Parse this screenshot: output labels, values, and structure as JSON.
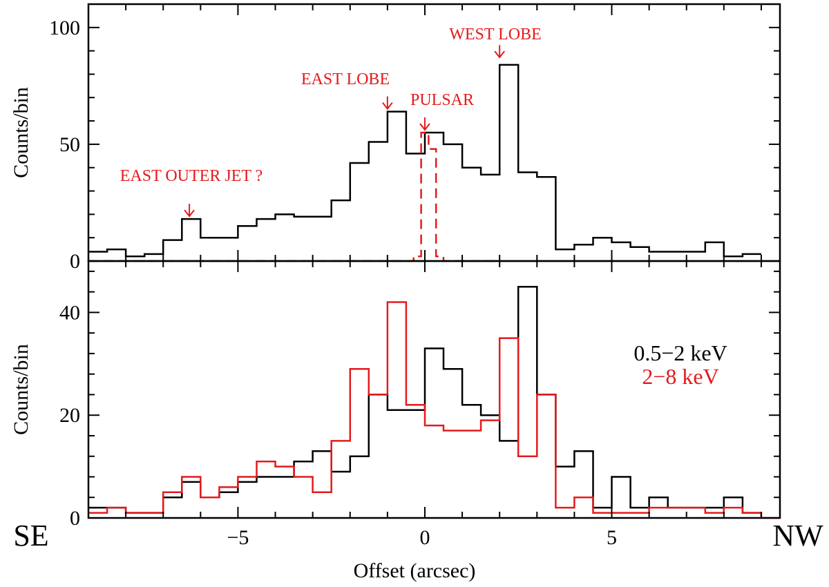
{
  "colors": {
    "axis": "#000000",
    "soft": "#000000",
    "hard": "#e31a1c",
    "annotation": "#e31a1c"
  },
  "chart_data": [
    {
      "type": "step",
      "panel": "top",
      "ylabel": "Counts/bin",
      "xlim": [
        -9,
        9.5
      ],
      "ylim": [
        0,
        110
      ],
      "yticks": [
        0,
        50,
        100
      ],
      "series": [
        {
          "name": "total counts",
          "style": "solid",
          "color": "#000000",
          "edges": [
            -9,
            -8.5,
            -8,
            -7.5,
            -7,
            -6.5,
            -6,
            -5.5,
            -5,
            -4.5,
            -4,
            -3.5,
            -3,
            -2.5,
            -2,
            -1.5,
            -1,
            -0.5,
            0,
            0.5,
            1,
            1.5,
            2,
            2.5,
            3,
            3.5,
            4,
            4.5,
            5,
            5.5,
            6,
            6.5,
            7,
            7.5,
            8,
            8.5,
            9
          ],
          "values": [
            4,
            5,
            2,
            3,
            9,
            18,
            10,
            10,
            15,
            18,
            20,
            19,
            19,
            26,
            42,
            51,
            64,
            46,
            55,
            50,
            40,
            37,
            84,
            38,
            36,
            5,
            7,
            10,
            8,
            6,
            4,
            4,
            4,
            8,
            2,
            3
          ]
        },
        {
          "name": "pulsar model",
          "style": "dashed",
          "color": "#e31a1c",
          "edges": [
            -9,
            -8.5,
            -8,
            -7.5,
            -7,
            -6.5,
            -6,
            -5.5,
            -5,
            -4.5,
            -4,
            -3.5,
            -3,
            -2.5,
            -2,
            -1.5,
            -1,
            -0.5,
            -0.3,
            -0.1,
            0.1,
            0.3,
            0.5,
            1,
            1.5,
            1.8,
            2
          ],
          "values": [
            0,
            0,
            0,
            0,
            0,
            0,
            0,
            0,
            0,
            0,
            0,
            0,
            0,
            0,
            0,
            0,
            0,
            0,
            2,
            55,
            48,
            2,
            0,
            0,
            0,
            0
          ]
        }
      ],
      "annotations": [
        {
          "text": "EAST OUTER JET ?",
          "x": -6.3,
          "y_arrow": 18
        },
        {
          "text": "EAST LOBE",
          "x": -1.0,
          "y_arrow": 64
        },
        {
          "text": "PULSAR",
          "x": 0.0,
          "y_arrow": 55
        },
        {
          "text": "WEST LOBE",
          "x": 2.0,
          "y_arrow": 86
        }
      ]
    },
    {
      "type": "step",
      "panel": "bottom",
      "ylabel": "Counts/bin",
      "xlabel": "Offset (arcsec)",
      "xlim": [
        -9,
        9.5
      ],
      "ylim": [
        0,
        50
      ],
      "yticks": [
        0,
        20,
        40
      ],
      "xticks": [
        -5,
        0,
        5
      ],
      "xticklabels": [
        "−5",
        "0",
        "5"
      ],
      "direction_labels": {
        "left": "SE",
        "right": "NW"
      },
      "series": [
        {
          "name": "0.5−2 keV",
          "style": "solid",
          "color": "#000000",
          "edges": [
            -9,
            -8.5,
            -8,
            -7.5,
            -7,
            -6.5,
            -6,
            -5.5,
            -5,
            -4.5,
            -4,
            -3.5,
            -3,
            -2.5,
            -2,
            -1.5,
            -1,
            -0.5,
            0,
            0.5,
            1,
            1.5,
            2,
            2.5,
            3,
            3.5,
            4,
            4.5,
            5,
            5.5,
            6,
            6.5,
            7,
            7.5,
            8,
            8.5,
            9
          ],
          "values": [
            2,
            2,
            1,
            1,
            4,
            7,
            4,
            5,
            7,
            8,
            8,
            11,
            13,
            9,
            12,
            24,
            21,
            21,
            33,
            29,
            22,
            20,
            15,
            45,
            24,
            10,
            13,
            2,
            8,
            2,
            4,
            2,
            2,
            2,
            4,
            1
          ]
        },
        {
          "name": "2−8 keV",
          "style": "solid",
          "color": "#e31a1c",
          "edges": [
            -9,
            -8.5,
            -8,
            -7.5,
            -7,
            -6.5,
            -6,
            -5.5,
            -5,
            -4.5,
            -4,
            -3.5,
            -3,
            -2.5,
            -2,
            -1.5,
            -1,
            -0.5,
            0,
            0.5,
            1,
            1.5,
            2,
            2.5,
            3,
            3.5,
            4,
            4.5,
            5,
            5.5,
            6,
            6.5,
            7,
            7.5,
            8,
            8.5,
            9,
            9.5
          ],
          "values": [
            1,
            2,
            1,
            1,
            5,
            8,
            4,
            6,
            8,
            11,
            10,
            8,
            5,
            15,
            29,
            24,
            42,
            22,
            18,
            17,
            17,
            19,
            35,
            12,
            24,
            2,
            4,
            1,
            1,
            1,
            2,
            2,
            2,
            1,
            2,
            1,
            0
          ]
        }
      ],
      "legend": {
        "position": "right",
        "entries": [
          "0.5−2 keV",
          "2−8 keV"
        ]
      }
    }
  ]
}
